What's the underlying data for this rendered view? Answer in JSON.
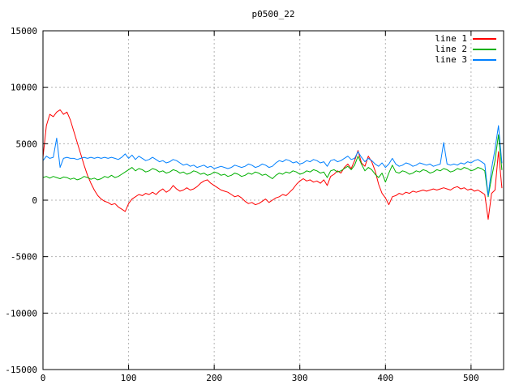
{
  "chart_data": {
    "type": "line",
    "title": "p0500_22",
    "xlabel": "",
    "ylabel": "",
    "xlim": [
      0,
      538
    ],
    "ylim": [
      -15000,
      15000
    ],
    "x_ticks": [
      0,
      100,
      200,
      300,
      400,
      500
    ],
    "y_ticks": [
      -15000,
      -10000,
      -5000,
      0,
      5000,
      10000,
      15000
    ],
    "grid": true,
    "grid_color": "#b4b4b4",
    "border_color": "#000000",
    "background": "#ffffff",
    "legend_position": "top-right-inside",
    "x": [
      0,
      4,
      8,
      12,
      16,
      20,
      24,
      28,
      32,
      36,
      40,
      44,
      48,
      52,
      56,
      60,
      64,
      68,
      72,
      76,
      80,
      84,
      88,
      92,
      96,
      100,
      104,
      108,
      112,
      116,
      120,
      124,
      128,
      132,
      136,
      140,
      144,
      148,
      152,
      156,
      160,
      164,
      168,
      172,
      176,
      180,
      184,
      188,
      192,
      196,
      200,
      204,
      208,
      212,
      216,
      220,
      224,
      228,
      232,
      236,
      240,
      244,
      248,
      252,
      256,
      260,
      264,
      268,
      272,
      276,
      280,
      284,
      288,
      292,
      296,
      300,
      304,
      308,
      312,
      316,
      320,
      324,
      328,
      332,
      336,
      340,
      344,
      348,
      352,
      356,
      360,
      364,
      368,
      372,
      376,
      380,
      384,
      388,
      392,
      396,
      400,
      404,
      408,
      412,
      416,
      420,
      424,
      428,
      432,
      436,
      440,
      444,
      448,
      452,
      456,
      460,
      464,
      468,
      472,
      476,
      480,
      484,
      488,
      492,
      496,
      500,
      504,
      508,
      512,
      516,
      520,
      524,
      528,
      532,
      536
    ],
    "series": [
      {
        "name": "line 1",
        "color": "#ff0000",
        "values": [
          3800,
          6600,
          7600,
          7400,
          7800,
          8000,
          7600,
          7800,
          7100,
          6100,
          5100,
          4100,
          3100,
          2200,
          1500,
          900,
          400,
          100,
          -100,
          -200,
          -400,
          -300,
          -600,
          -800,
          -1000,
          -300,
          100,
          300,
          500,
          400,
          600,
          500,
          700,
          500,
          800,
          1000,
          700,
          900,
          1300,
          1000,
          800,
          900,
          1100,
          900,
          1000,
          1200,
          1500,
          1700,
          1800,
          1500,
          1300,
          1100,
          900,
          800,
          700,
          500,
          300,
          400,
          200,
          -100,
          -300,
          -200,
          -400,
          -300,
          -100,
          100,
          -200,
          0,
          200,
          300,
          500,
          400,
          700,
          1000,
          1400,
          1700,
          1900,
          1700,
          1800,
          1600,
          1700,
          1500,
          1800,
          1300,
          2100,
          2300,
          2600,
          2400,
          2900,
          3200,
          2800,
          3500,
          4400,
          3300,
          3000,
          3900,
          3400,
          2600,
          1400,
          600,
          200,
          -400,
          300,
          400,
          600,
          500,
          700,
          600,
          800,
          700,
          800,
          900,
          800,
          900,
          1000,
          900,
          1000,
          1100,
          1000,
          900,
          1100,
          1200,
          1000,
          1100,
          900,
          1000,
          800,
          900,
          700,
          500,
          -1700,
          600,
          900,
          4300,
          1100
        ]
      },
      {
        "name": "line 2",
        "color": "#00b000",
        "values": [
          2000,
          2100,
          1950,
          2100,
          2000,
          1900,
          2050,
          2000,
          1850,
          1950,
          1800,
          1900,
          2100,
          2000,
          1850,
          1950,
          1800,
          1900,
          2100,
          2000,
          2200,
          2000,
          2100,
          2300,
          2500,
          2700,
          2900,
          2600,
          2800,
          2700,
          2500,
          2600,
          2800,
          2700,
          2500,
          2600,
          2400,
          2500,
          2700,
          2600,
          2400,
          2500,
          2300,
          2400,
          2600,
          2500,
          2300,
          2400,
          2200,
          2300,
          2500,
          2400,
          2200,
          2300,
          2100,
          2200,
          2400,
          2300,
          2100,
          2200,
          2400,
          2300,
          2500,
          2400,
          2200,
          2300,
          2100,
          1900,
          2200,
          2400,
          2300,
          2500,
          2400,
          2600,
          2500,
          2300,
          2400,
          2600,
          2500,
          2700,
          2600,
          2400,
          2500,
          2000,
          2600,
          2700,
          2500,
          2600,
          2800,
          3000,
          2700,
          3100,
          3900,
          3200,
          2600,
          2900,
          2700,
          2300,
          2000,
          2400,
          1600,
          2400,
          3100,
          2500,
          2400,
          2600,
          2500,
          2300,
          2400,
          2600,
          2500,
          2700,
          2600,
          2400,
          2500,
          2700,
          2600,
          2800,
          2700,
          2500,
          2600,
          2800,
          2700,
          2900,
          2800,
          2600,
          2700,
          2900,
          2800,
          2600,
          300,
          2000,
          3500,
          5800,
          2700
        ]
      },
      {
        "name": "line 3",
        "color": "#0080ff",
        "values": [
          3500,
          3900,
          3700,
          3800,
          5500,
          2900,
          3700,
          3800,
          3700,
          3700,
          3600,
          3700,
          3800,
          3700,
          3800,
          3700,
          3800,
          3700,
          3800,
          3700,
          3800,
          3700,
          3600,
          3800,
          4100,
          3700,
          4000,
          3600,
          3900,
          3700,
          3500,
          3600,
          3800,
          3600,
          3400,
          3500,
          3300,
          3400,
          3600,
          3500,
          3300,
          3100,
          3200,
          3000,
          3100,
          2900,
          3000,
          3100,
          2900,
          3000,
          2800,
          2900,
          3000,
          2900,
          2800,
          2900,
          3100,
          3000,
          2900,
          3000,
          3200,
          3100,
          2900,
          3000,
          3200,
          3100,
          2900,
          3000,
          3300,
          3500,
          3400,
          3600,
          3500,
          3300,
          3400,
          3200,
          3300,
          3500,
          3400,
          3600,
          3500,
          3300,
          3400,
          3000,
          3500,
          3600,
          3400,
          3500,
          3700,
          3900,
          3600,
          3700,
          4300,
          3800,
          3400,
          3700,
          3500,
          3200,
          3000,
          3300,
          2900,
          3200,
          3700,
          3200,
          3000,
          3100,
          3300,
          3200,
          3000,
          3100,
          3300,
          3200,
          3100,
          3200,
          3000,
          3100,
          3200,
          5100,
          3200,
          3100,
          3200,
          3100,
          3300,
          3200,
          3400,
          3300,
          3500,
          3600,
          3400,
          3200,
          400,
          2800,
          4500,
          6600,
          3300
        ]
      }
    ]
  }
}
